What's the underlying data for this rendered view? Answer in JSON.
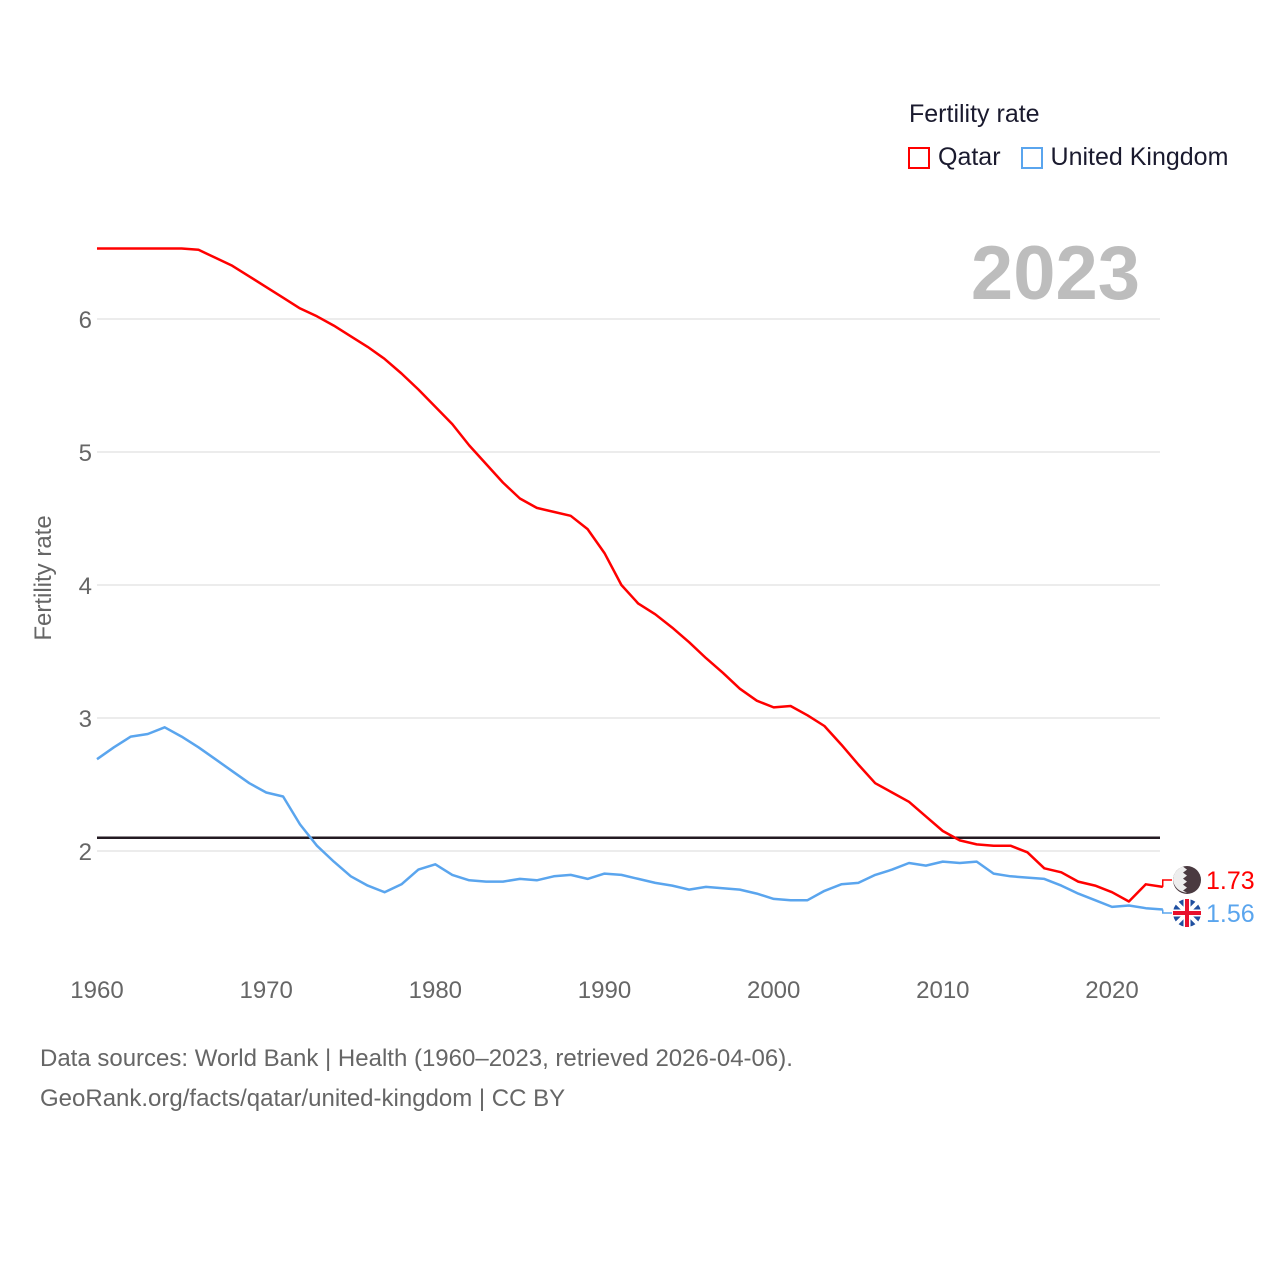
{
  "chart_data": {
    "type": "line",
    "title": "Fertility rate",
    "year_label": "2023",
    "ylabel": "Fertility rate",
    "xlabel": "",
    "xlim": [
      1960,
      2023
    ],
    "ylim": [
      1.3,
      6.75
    ],
    "xticks": [
      1960,
      1970,
      1980,
      1990,
      2000,
      2010,
      2020
    ],
    "yticks": [
      2,
      3,
      4,
      5,
      6
    ],
    "grid": true,
    "legend_placement": "top-right",
    "reference_line": {
      "value": 2.1,
      "color": "#231a22"
    },
    "x": [
      1960,
      1961,
      1962,
      1963,
      1964,
      1965,
      1966,
      1967,
      1968,
      1969,
      1970,
      1971,
      1972,
      1973,
      1974,
      1975,
      1976,
      1977,
      1978,
      1979,
      1980,
      1981,
      1982,
      1983,
      1984,
      1985,
      1986,
      1987,
      1988,
      1989,
      1990,
      1991,
      1992,
      1993,
      1994,
      1995,
      1996,
      1997,
      1998,
      1999,
      2000,
      2001,
      2002,
      2003,
      2004,
      2005,
      2006,
      2007,
      2008,
      2009,
      2010,
      2011,
      2012,
      2013,
      2014,
      2015,
      2016,
      2017,
      2018,
      2019,
      2020,
      2021,
      2022,
      2023
    ],
    "series": [
      {
        "name": "Qatar",
        "color": "#ff0000",
        "end_label": "1.73",
        "flag": "qatar-flag",
        "values": [
          6.53,
          6.53,
          6.53,
          6.53,
          6.53,
          6.53,
          6.52,
          6.46,
          6.4,
          6.32,
          6.24,
          6.16,
          6.08,
          6.02,
          5.95,
          5.87,
          5.79,
          5.7,
          5.59,
          5.47,
          5.34,
          5.21,
          5.05,
          4.91,
          4.77,
          4.65,
          4.58,
          4.55,
          4.52,
          4.42,
          4.24,
          4.0,
          3.86,
          3.78,
          3.68,
          3.57,
          3.45,
          3.34,
          3.22,
          3.13,
          3.08,
          3.09,
          3.02,
          2.94,
          2.8,
          2.65,
          2.51,
          2.44,
          2.37,
          2.26,
          2.15,
          2.08,
          2.05,
          2.04,
          2.04,
          1.99,
          1.87,
          1.84,
          1.77,
          1.74,
          1.69,
          1.62,
          1.75,
          1.73
        ]
      },
      {
        "name": "United Kingdom",
        "color": "#5aa5ee",
        "end_label": "1.56",
        "flag": "uk-flag",
        "values": [
          2.69,
          2.78,
          2.86,
          2.88,
          2.93,
          2.86,
          2.78,
          2.69,
          2.6,
          2.51,
          2.44,
          2.41,
          2.2,
          2.04,
          1.92,
          1.81,
          1.74,
          1.69,
          1.75,
          1.86,
          1.9,
          1.82,
          1.78,
          1.77,
          1.77,
          1.79,
          1.78,
          1.81,
          1.82,
          1.79,
          1.83,
          1.82,
          1.79,
          1.76,
          1.74,
          1.71,
          1.73,
          1.72,
          1.71,
          1.68,
          1.64,
          1.63,
          1.63,
          1.7,
          1.75,
          1.76,
          1.82,
          1.86,
          1.91,
          1.89,
          1.92,
          1.91,
          1.92,
          1.83,
          1.81,
          1.8,
          1.79,
          1.74,
          1.68,
          1.63,
          1.58,
          1.59,
          1.57,
          1.56
        ]
      }
    ]
  },
  "footer": {
    "line1": "Data sources: World Bank | Health (1960–2023, retrieved 2026-04-06).",
    "line2": "GeoRank.org/facts/qatar/united-kingdom | CC BY"
  }
}
